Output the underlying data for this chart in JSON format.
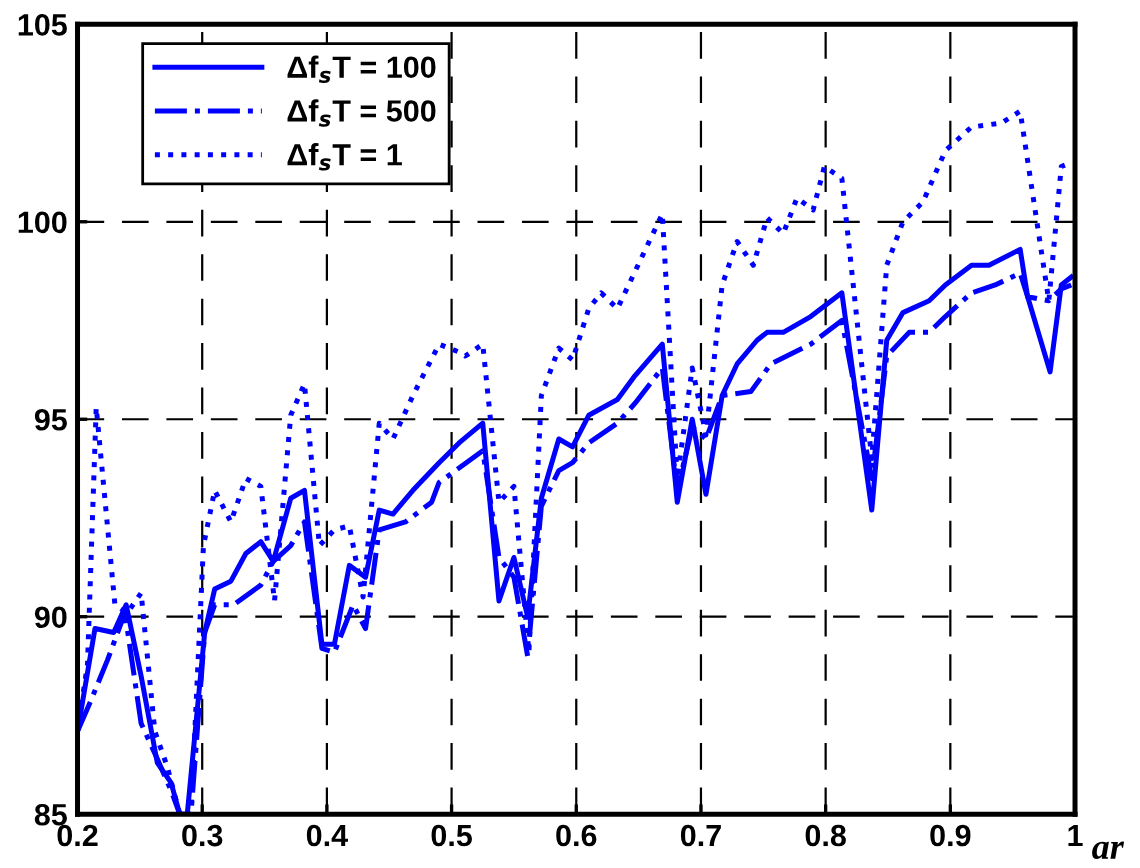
{
  "chart_data": {
    "type": "line",
    "xlabel": "ar",
    "xlim": [
      0.2,
      1.0
    ],
    "ylim": [
      85,
      105
    ],
    "xticks": [
      0.2,
      0.3,
      0.4,
      0.5,
      0.6,
      0.7,
      0.8,
      0.9,
      1
    ],
    "yticks": [
      85,
      90,
      95,
      100,
      105
    ],
    "grid": true,
    "legend": "top left",
    "marker": "none",
    "series": [
      {
        "name": "Δf$_{s}$T = 100",
        "color": "#0000ff",
        "line_style": "solid",
        "x": [
          0.2,
          0.214,
          0.229,
          0.239,
          0.251,
          0.264,
          0.275,
          0.282,
          0.288,
          0.302,
          0.31,
          0.323,
          0.335,
          0.347,
          0.357,
          0.371,
          0.382,
          0.396,
          0.406,
          0.418,
          0.431,
          0.442,
          0.453,
          0.469,
          0.49,
          0.506,
          0.525,
          0.538,
          0.55,
          0.561,
          0.572,
          0.586,
          0.597,
          0.61,
          0.633,
          0.647,
          0.669,
          0.681,
          0.693,
          0.704,
          0.717,
          0.729,
          0.745,
          0.753,
          0.766,
          0.788,
          0.813,
          0.837,
          0.849,
          0.862,
          0.883,
          0.896,
          0.917,
          0.931,
          0.956,
          0.962,
          0.98,
          0.989,
          0.997
        ],
        "values": [
          87.1,
          89.7,
          89.6,
          90.3,
          88.5,
          86.3,
          85.8,
          85.0,
          85.0,
          89.6,
          90.7,
          90.9,
          91.6,
          91.9,
          91.4,
          93.0,
          93.2,
          89.3,
          89.3,
          91.3,
          91.0,
          92.7,
          92.6,
          93.2,
          93.9,
          94.4,
          94.9,
          90.4,
          91.5,
          90.0,
          93.0,
          94.5,
          94.3,
          95.1,
          95.5,
          96.1,
          96.9,
          92.9,
          95.0,
          93.1,
          95.6,
          96.4,
          97.0,
          97.2,
          97.2,
          97.6,
          98.2,
          92.7,
          97.0,
          97.7,
          98.0,
          98.4,
          98.9,
          98.9,
          99.3,
          98.1,
          96.2,
          98.4,
          98.6
        ]
      },
      {
        "name": "Δf$_{s}$T = 500",
        "color": "#0000ff",
        "line_style": "dashdot",
        "x": [
          0.2,
          0.211,
          0.224,
          0.238,
          0.251,
          0.264,
          0.275,
          0.282,
          0.291,
          0.302,
          0.31,
          0.325,
          0.347,
          0.357,
          0.371,
          0.382,
          0.396,
          0.406,
          0.421,
          0.431,
          0.442,
          0.463,
          0.484,
          0.49,
          0.525,
          0.538,
          0.55,
          0.561,
          0.572,
          0.586,
          0.597,
          0.61,
          0.633,
          0.647,
          0.669,
          0.681,
          0.693,
          0.704,
          0.717,
          0.74,
          0.756,
          0.788,
          0.813,
          0.837,
          0.849,
          0.867,
          0.883,
          0.896,
          0.917,
          0.936,
          0.956,
          0.962,
          0.979,
          0.989,
          0.997
        ],
        "values": [
          87.1,
          87.9,
          88.9,
          90.1,
          87.3,
          86.4,
          85.6,
          85.0,
          85.0,
          89.6,
          90.3,
          90.3,
          90.8,
          91.4,
          91.8,
          92.4,
          89.2,
          89.1,
          90.3,
          89.7,
          92.2,
          92.4,
          92.9,
          93.4,
          94.2,
          91.5,
          91.0,
          89.0,
          92.8,
          93.7,
          93.9,
          94.4,
          94.9,
          95.4,
          96.3,
          93.2,
          94.8,
          94.5,
          95.6,
          95.7,
          96.4,
          96.9,
          97.5,
          93.5,
          96.6,
          97.2,
          97.2,
          97.6,
          98.2,
          98.4,
          98.7,
          98.1,
          98.0,
          98.3,
          98.4
        ]
      },
      {
        "name": "Δf$_{s}$T = 1",
        "color": "#0000ff",
        "line_style": "dotted",
        "x": [
          0.2,
          0.208,
          0.215,
          0.23,
          0.24,
          0.251,
          0.262,
          0.272,
          0.282,
          0.291,
          0.301,
          0.31,
          0.323,
          0.335,
          0.347,
          0.358,
          0.371,
          0.382,
          0.394,
          0.406,
          0.418,
          0.429,
          0.442,
          0.453,
          0.469,
          0.49,
          0.506,
          0.511,
          0.525,
          0.538,
          0.55,
          0.562,
          0.572,
          0.586,
          0.597,
          0.61,
          0.62,
          0.633,
          0.669,
          0.681,
          0.693,
          0.704,
          0.717,
          0.729,
          0.742,
          0.753,
          0.766,
          0.777,
          0.79,
          0.799,
          0.813,
          0.837,
          0.849,
          0.862,
          0.878,
          0.896,
          0.917,
          0.941,
          0.956,
          0.979,
          0.989,
          0.997
        ],
        "values": [
          87.1,
          88.8,
          95.3,
          90.3,
          90.1,
          90.6,
          87.1,
          86.2,
          85.0,
          85.0,
          91.8,
          93.2,
          92.4,
          93.5,
          93.3,
          90.4,
          95.1,
          95.9,
          91.8,
          92.2,
          92.3,
          90.5,
          94.9,
          94.5,
          95.6,
          96.9,
          96.7,
          96.6,
          96.9,
          92.9,
          93.3,
          89.1,
          95.6,
          96.8,
          96.5,
          97.8,
          98.2,
          97.8,
          100.2,
          93.5,
          96.3,
          94.6,
          98.4,
          99.5,
          98.9,
          100.1,
          99.7,
          100.6,
          100.3,
          101.4,
          101.1,
          94.0,
          98.9,
          100.0,
          100.5,
          101.8,
          102.4,
          102.5,
          102.8,
          98.0,
          101.4,
          101.5
        ]
      }
    ]
  }
}
